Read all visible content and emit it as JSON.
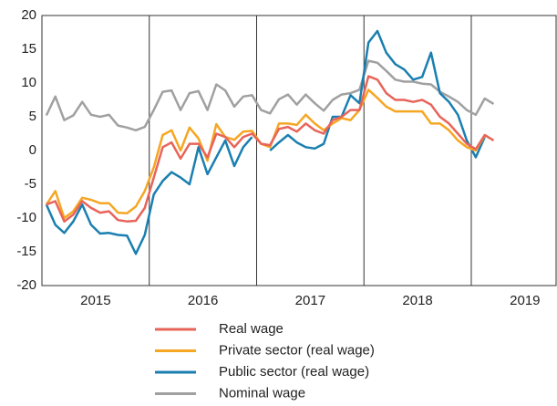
{
  "chart_data": {
    "type": "line",
    "x": [
      2015.042,
      2015.125,
      2015.208,
      2015.292,
      2015.375,
      2015.458,
      2015.542,
      2015.625,
      2015.708,
      2015.792,
      2015.875,
      2015.958,
      2016.042,
      2016.125,
      2016.208,
      2016.292,
      2016.375,
      2016.458,
      2016.542,
      2016.625,
      2016.708,
      2016.792,
      2016.875,
      2016.958,
      2017.042,
      2017.125,
      2017.208,
      2017.292,
      2017.375,
      2017.458,
      2017.542,
      2017.625,
      2017.708,
      2017.792,
      2017.875,
      2017.958,
      2018.042,
      2018.125,
      2018.208,
      2018.292,
      2018.375,
      2018.458,
      2018.542,
      2018.625,
      2018.708,
      2018.792,
      2018.875,
      2018.958,
      2019.042,
      2019.125,
      2019.208
    ],
    "series": [
      {
        "name": "Real wage",
        "color": "#e8645a",
        "values": [
          -8,
          -7.5,
          -10.5,
          -9.5,
          -7.5,
          -8.5,
          -9.2,
          -9,
          -10.3,
          -10.5,
          -10.4,
          -8.5,
          -4,
          0.5,
          1.2,
          -1.2,
          1,
          1,
          -1,
          2.5,
          2,
          0.5,
          2,
          2.5,
          1,
          0.8,
          3.2,
          3.5,
          2.8,
          4,
          3,
          2.5,
          4.5,
          5,
          6,
          6,
          11,
          10.5,
          8.5,
          7.5,
          7.5,
          7.2,
          7.5,
          6.8,
          5,
          4,
          2.5,
          1,
          0.2,
          2.3,
          1.5
        ]
      },
      {
        "name": "Private sector (real wage)",
        "color": "#f5a623",
        "values": [
          -8,
          -6,
          -10,
          -9,
          -7,
          -7.3,
          -7.8,
          -7.8,
          -9.2,
          -9.3,
          -8.3,
          -6,
          -2.5,
          2.3,
          3,
          0,
          3.4,
          1.8,
          -1.5,
          3.9,
          2,
          1.6,
          2.8,
          2.9,
          1,
          0.5,
          4,
          4,
          3.8,
          5.3,
          4,
          3,
          4,
          4.8,
          4.5,
          6,
          9,
          7.8,
          6.5,
          5.8,
          5.8,
          5.8,
          5.8,
          4,
          4,
          3,
          1.5,
          0.5,
          0,
          2.2,
          null
        ]
      },
      {
        "name": "Public sector (real wage)",
        "color": "#1a7fb0",
        "values": [
          -8,
          -11,
          -12.2,
          -10.5,
          -8,
          -11,
          -12.3,
          -12.2,
          -12.5,
          -12.6,
          -15.3,
          -12.5,
          -6.5,
          -4.5,
          -3.2,
          -4,
          -5,
          0.5,
          -3.5,
          -1,
          1.5,
          -2.3,
          0.5,
          2,
          null,
          0,
          1.2,
          2.3,
          1.2,
          0.5,
          0.3,
          1,
          5,
          5,
          8.2,
          7,
          16,
          17.7,
          14.5,
          12.8,
          12,
          10.5,
          10.9,
          14.5,
          8.5,
          7.2,
          5.3,
          1.5,
          -1,
          2,
          null
        ]
      },
      {
        "name": "Nominal wage",
        "color": "#a0a0a0",
        "values": [
          5.2,
          8,
          4.5,
          5.2,
          7.2,
          5.3,
          5,
          5.3,
          3.7,
          3.4,
          3,
          3.5,
          6,
          8.7,
          8.9,
          6,
          8.5,
          8.8,
          6,
          9.8,
          8.9,
          6.5,
          8,
          8.2,
          6,
          5.5,
          7.6,
          8.3,
          6.8,
          8.3,
          7,
          5.9,
          7.5,
          8.3,
          8.5,
          9,
          13.3,
          13,
          11.8,
          10.5,
          10.2,
          10.2,
          9.9,
          9.8,
          8.7,
          8,
          7.2,
          6,
          5.3,
          7.7,
          6.9
        ]
      }
    ],
    "xlim": [
      2015,
      2019.79
    ],
    "xticks": [
      {
        "value": 2015.5,
        "label": "2015"
      },
      {
        "value": 2016.5,
        "label": "2016"
      },
      {
        "value": 2017.5,
        "label": "2017"
      },
      {
        "value": 2018.5,
        "label": "2018"
      },
      {
        "value": 2019.5,
        "label": "2019"
      }
    ],
    "xgrid": [
      2016,
      2017,
      2018,
      2019
    ],
    "ylim": [
      -20,
      20
    ],
    "yticks": [
      -20,
      -15,
      -10,
      -5,
      0,
      5,
      10,
      15,
      20
    ],
    "grid": false,
    "legend": "bottom"
  }
}
